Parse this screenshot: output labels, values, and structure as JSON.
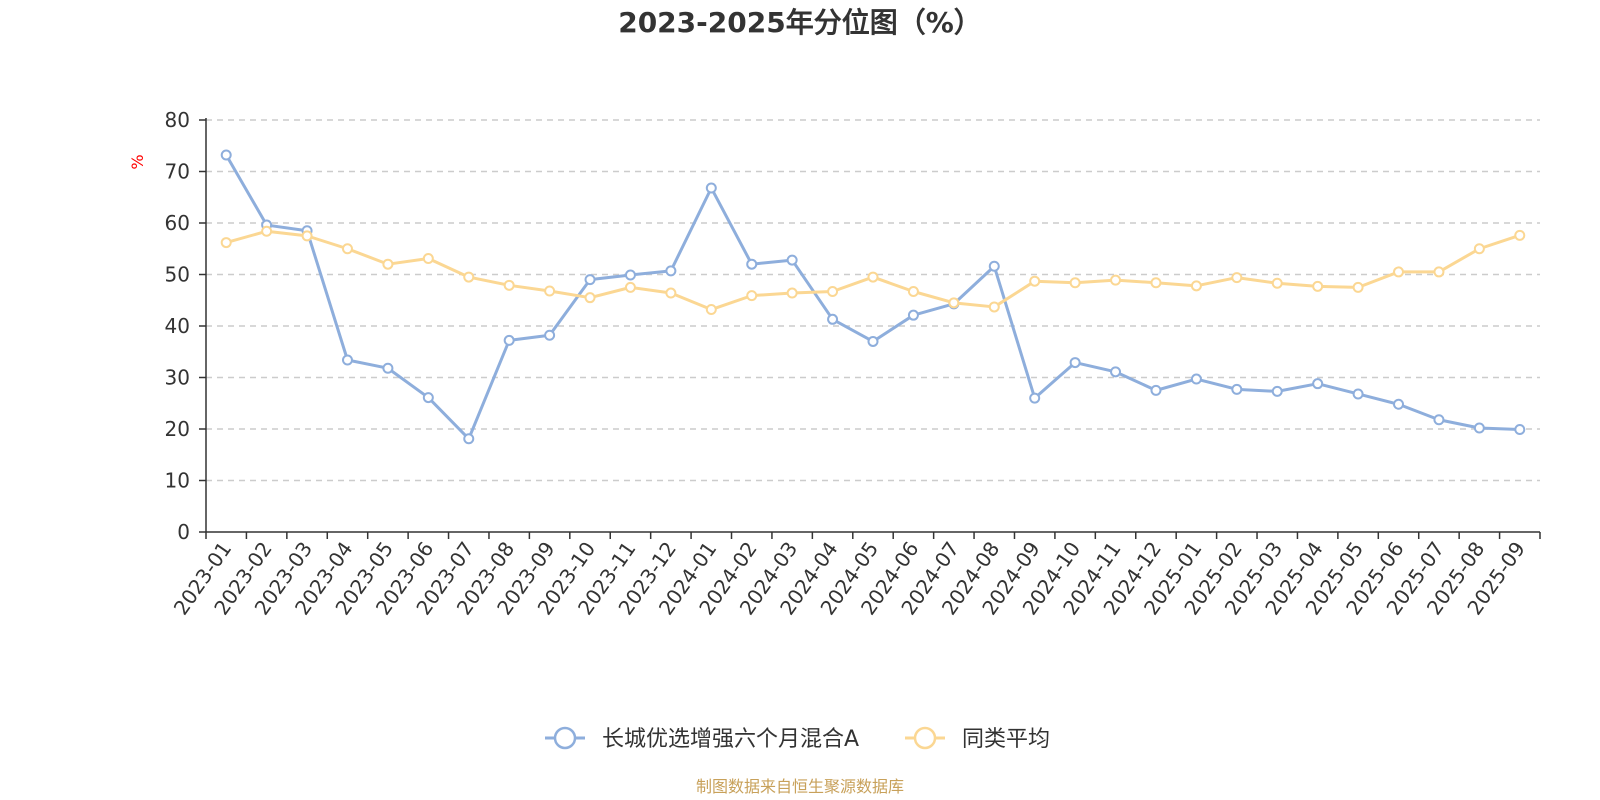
{
  "chart_data": {
    "type": "line",
    "title": "2023-2025年分位图（%）",
    "ylabel": "%",
    "xlabel": "",
    "ylim": [
      0,
      80
    ],
    "yticks": [
      0,
      10,
      20,
      30,
      40,
      50,
      60,
      70,
      80
    ],
    "grid": true,
    "legend_position": "bottom-center",
    "categories": [
      "2023-01",
      "2023-02",
      "2023-03",
      "2023-04",
      "2023-05",
      "2023-06",
      "2023-07",
      "2023-08",
      "2023-09",
      "2023-10",
      "2023-11",
      "2023-12",
      "2024-01",
      "2024-02",
      "2024-03",
      "2024-04",
      "2024-05",
      "2024-06",
      "2024-07",
      "2024-08",
      "2024-09",
      "2024-10",
      "2024-11",
      "2024-12",
      "2025-01",
      "2025-02",
      "2025-03",
      "2025-04",
      "2025-05",
      "2025-06",
      "2025-07",
      "2025-08",
      "2025-09"
    ],
    "series": [
      {
        "name": "长城优选增强六个月混合A",
        "color": "#8eaedc",
        "values": [
          73.2,
          59.6,
          58.5,
          33.4,
          31.8,
          26.1,
          18.1,
          37.2,
          38.2,
          49.0,
          49.9,
          50.7,
          66.8,
          52.0,
          52.8,
          41.3,
          37.0,
          42.1,
          44.3,
          51.6,
          26.0,
          32.9,
          31.1,
          27.5,
          29.7,
          27.7,
          27.3,
          28.8,
          26.8,
          24.8,
          21.8,
          20.2,
          19.9
        ]
      },
      {
        "name": "同类平均",
        "color": "#fbd793",
        "values": [
          56.2,
          58.4,
          57.5,
          55.0,
          52.0,
          53.1,
          49.5,
          47.9,
          46.8,
          45.5,
          47.5,
          46.4,
          43.2,
          45.9,
          46.4,
          46.7,
          49.5,
          46.7,
          44.5,
          43.7,
          48.7,
          48.4,
          48.9,
          48.4,
          47.8,
          49.4,
          48.3,
          47.7,
          47.5,
          50.5,
          50.5,
          55.0,
          57.6
        ]
      }
    ]
  },
  "source_note": "制图数据来自恒生聚源数据库"
}
